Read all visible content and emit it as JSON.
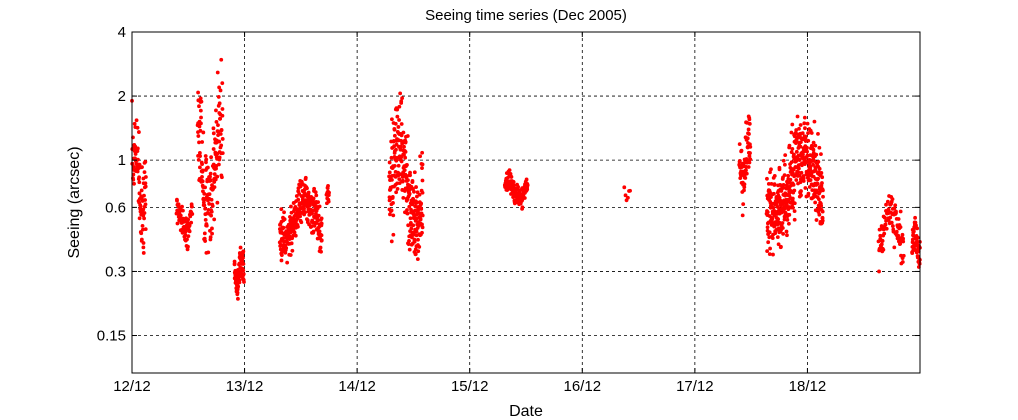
{
  "chart_data": {
    "type": "scatter",
    "title": "Seeing time series (Dec 2005)",
    "xlabel": "Date",
    "ylabel": "Seeing (arcsec)",
    "x_ticks": [
      "12/12",
      "13/12",
      "14/12",
      "15/12",
      "16/12",
      "17/12",
      "18/12"
    ],
    "x_range": [
      "12/12 00:00",
      "19/12 00:00"
    ],
    "y_scale": "log",
    "y_ticks": [
      0.15,
      0.3,
      0.6,
      1,
      2,
      4
    ],
    "ylim": [
      0.1,
      4
    ],
    "grid": true,
    "colors": {
      "marker": "#ff0000",
      "grid": "#000000",
      "frame": "#000000"
    },
    "series": [
      {
        "segments": [
          {
            "start": "12/12 00:00",
            "end": "12/12 03:00",
            "points": 95,
            "seeing_range": [
              0.33,
              1.9
            ]
          },
          {
            "start": "12/12 09:30",
            "end": "12/12 12:50",
            "points": 75,
            "seeing_range": [
              0.38,
              0.7
            ]
          },
          {
            "start": "12/12 14:00",
            "end": "12/12 19:20",
            "points": 170,
            "seeing_range": [
              0.3,
              3.0
            ]
          },
          {
            "start": "12/12 21:50",
            "end": "12/12 23:50",
            "points": 95,
            "seeing_range": [
              0.22,
              0.42
            ]
          },
          {
            "start": "13/12 07:30",
            "end": "13/12 16:30",
            "points": 300,
            "seeing_range": [
              0.33,
              0.86
            ]
          },
          {
            "start": "13/12 17:30",
            "end": "13/12 18:00",
            "points": 14,
            "seeing_range": [
              0.6,
              0.84
            ]
          },
          {
            "start": "14/12 06:50",
            "end": "14/12 14:00",
            "points": 270,
            "seeing_range": [
              0.26,
              2.2
            ]
          },
          {
            "start": "15/12 07:30",
            "end": "15/12 12:20",
            "points": 140,
            "seeing_range": [
              0.58,
              0.9
            ]
          },
          {
            "start": "16/12 09:00",
            "end": "16/12 10:10",
            "points": 6,
            "seeing_range": [
              0.62,
              0.76
            ]
          },
          {
            "start": "17/12 09:30",
            "end": "17/12 11:50",
            "points": 75,
            "seeing_range": [
              0.55,
              1.75
            ]
          },
          {
            "start": "17/12 15:20",
            "end": "18/12 03:20",
            "points": 480,
            "seeing_range": [
              0.32,
              1.8
            ]
          },
          {
            "start": "18/12 15:10",
            "end": "18/12 20:30",
            "points": 95,
            "seeing_range": [
              0.3,
              0.76
            ]
          },
          {
            "start": "18/12 22:20",
            "end": "19/12 00:00",
            "points": 60,
            "seeing_range": [
              0.28,
              0.6
            ]
          }
        ]
      }
    ]
  }
}
